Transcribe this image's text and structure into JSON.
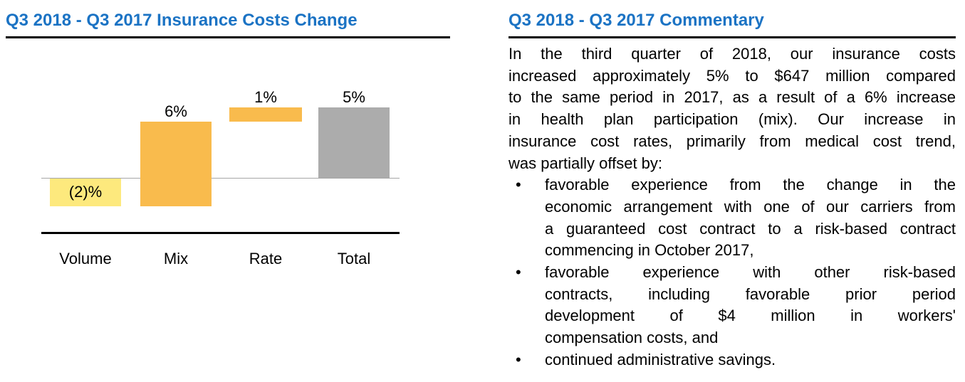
{
  "chart_panel": {
    "title": "Q3 2018 - Q3 2017 Insurance Costs Change"
  },
  "chart_data": {
    "type": "bar",
    "subtype": "waterfall",
    "title": "Q3 2018 - Q3 2017 Insurance Costs Change",
    "categories": [
      "Volume",
      "Mix",
      "Rate",
      "Total"
    ],
    "values": [
      -2,
      6,
      1,
      5
    ],
    "value_labels": [
      "(2)%",
      "6%",
      "1%",
      "5%"
    ],
    "unit": "percent",
    "bars": [
      {
        "category": "Volume",
        "value": -2,
        "label": "(2)%",
        "span_from": 0,
        "span_to": -2,
        "color": "#FDE97D",
        "label_position": "inside"
      },
      {
        "category": "Mix",
        "value": 6,
        "label": "6%",
        "span_from": -2,
        "span_to": 4,
        "color": "#F9BB4D",
        "label_position": "above"
      },
      {
        "category": "Rate",
        "value": 1,
        "label": "1%",
        "span_from": 4,
        "span_to": 5,
        "color": "#F9BB4D",
        "label_position": "above"
      },
      {
        "category": "Total",
        "value": 5,
        "label": "5%",
        "span_from": 0,
        "span_to": 5,
        "color": "#ACACAC",
        "label_position": "above"
      }
    ],
    "axis": {
      "zero_line_visible": true,
      "y_axis_visible": false,
      "gridlines": false,
      "ylim": [
        -2,
        7
      ]
    },
    "legend": "none",
    "colors": {
      "negative": "#FDE97D",
      "positive": "#F9BB4D",
      "total": "#ACACAC",
      "zero_line": "#A6A6A6"
    }
  },
  "commentary": {
    "title": "Q3 2018 - Q3 2017 Commentary",
    "bullet_char": "•",
    "paragraph_lines": [
      "In the third quarter of 2018, our insurance costs",
      "increased approximately 5% to $647 million compared",
      "to the same period in 2017, as a result of a 6% increase",
      "in health plan participation (mix). Our increase in",
      "insurance cost rates, primarily from medical cost trend,",
      "was partially offset by:"
    ],
    "bullets": [
      {
        "lines": [
          "favorable experience from the change in the",
          "economic arrangement with one of our carriers from",
          "a guaranteed cost contract to a risk-based contract",
          "commencing in October 2017,"
        ]
      },
      {
        "lines": [
          "favorable experience with other risk-based",
          "contracts, including favorable prior period",
          "development of $4 million in workers'",
          "compensation costs, and"
        ]
      },
      {
        "lines": [
          "continued administrative savings."
        ]
      }
    ]
  },
  "colors": {
    "title_blue": "#1B73C4",
    "rule_black": "#000000",
    "text_black": "#000000"
  }
}
